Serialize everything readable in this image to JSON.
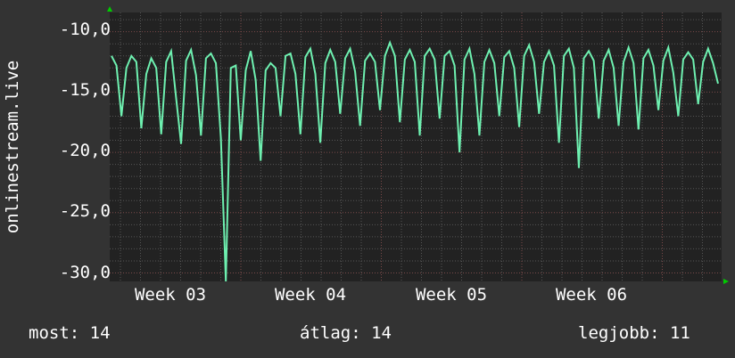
{
  "chart_data": {
    "type": "line",
    "ylabel": "onlinestream.live",
    "ylim": [
      -30.7,
      -8.4
    ],
    "yticks": [
      "-10,0",
      "-15,0",
      "-20,0",
      "-25,0",
      "-30,0"
    ],
    "ytick_values": [
      -10,
      -15,
      -20,
      -25,
      -30
    ],
    "xticks": [
      "Week 03",
      "Week 04",
      "Week 05",
      "Week 06"
    ],
    "grid": true,
    "series_color": "#6ef0b0",
    "values": [
      -12,
      -12.8,
      -17,
      -13,
      -12,
      -12.5,
      -18,
      -13.5,
      -12.2,
      -13,
      -18.5,
      -12.5,
      -11.6,
      -15.5,
      -19.3,
      -12.4,
      -11.5,
      -13.6,
      -18.6,
      -12.2,
      -11.8,
      -12.6,
      -18.8,
      -30.7,
      -13,
      -12.8,
      -19,
      -13.2,
      -11.6,
      -14,
      -20.7,
      -13.2,
      -12.6,
      -13,
      -17,
      -12,
      -11.8,
      -13.5,
      -18.5,
      -12.1,
      -11.4,
      -13.5,
      -19.2,
      -12.6,
      -11.5,
      -12.5,
      -16.8,
      -12.2,
      -11.4,
      -13.3,
      -17.8,
      -12.4,
      -11.8,
      -12.5,
      -16.5,
      -12,
      -10.9,
      -12,
      -17.5,
      -12.3,
      -11.5,
      -12.5,
      -18.6,
      -12,
      -11.4,
      -12.3,
      -17.2,
      -12,
      -11.6,
      -12.8,
      -20,
      -12.3,
      -11.4,
      -13.5,
      -18.6,
      -12.5,
      -11.5,
      -12.6,
      -17,
      -12.1,
      -11.6,
      -13,
      -17.9,
      -12,
      -11.1,
      -12.5,
      -16.8,
      -12.5,
      -11.6,
      -12.8,
      -19.2,
      -12,
      -11.4,
      -13,
      -21.3,
      -12.2,
      -11.6,
      -12.4,
      -17.2,
      -12.4,
      -11.5,
      -13,
      -17.8,
      -12.5,
      -11.3,
      -12.6,
      -18.1,
      -12.2,
      -11.5,
      -12.8,
      -16.5,
      -12.4,
      -11.3,
      -13.4,
      -17,
      -12.3,
      -11.7,
      -12.3,
      -16,
      -12.5,
      -11.4,
      -12.6,
      -14.3
    ]
  },
  "footer": {
    "last": "most: 14",
    "avg": "átlag: 14",
    "max": "legjobb: 11"
  }
}
